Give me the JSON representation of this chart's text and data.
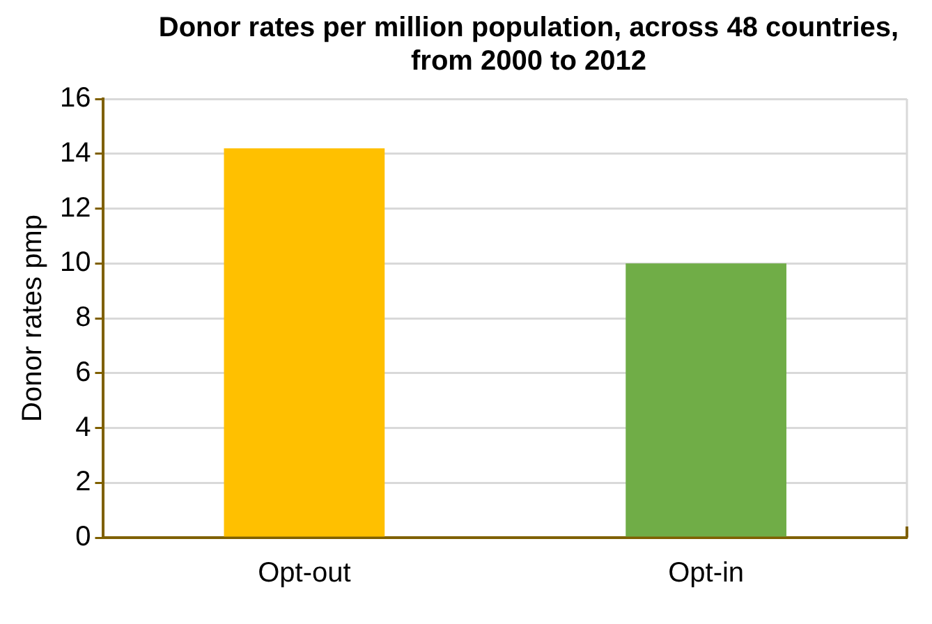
{
  "chart_data": {
    "type": "bar",
    "title": "Donor rates per million population, across 48 countries, from 2000 to 2012",
    "ylabel": "Donor rates pmp",
    "categories": [
      "Opt-out",
      "Opt-in"
    ],
    "values": [
      14.2,
      10.0
    ],
    "colors": [
      "#ffc000",
      "#70ad47"
    ],
    "ylim": [
      0,
      16
    ],
    "yticks": [
      0,
      2,
      4,
      6,
      8,
      10,
      12,
      14,
      16
    ],
    "grid": "y",
    "legend": false
  }
}
